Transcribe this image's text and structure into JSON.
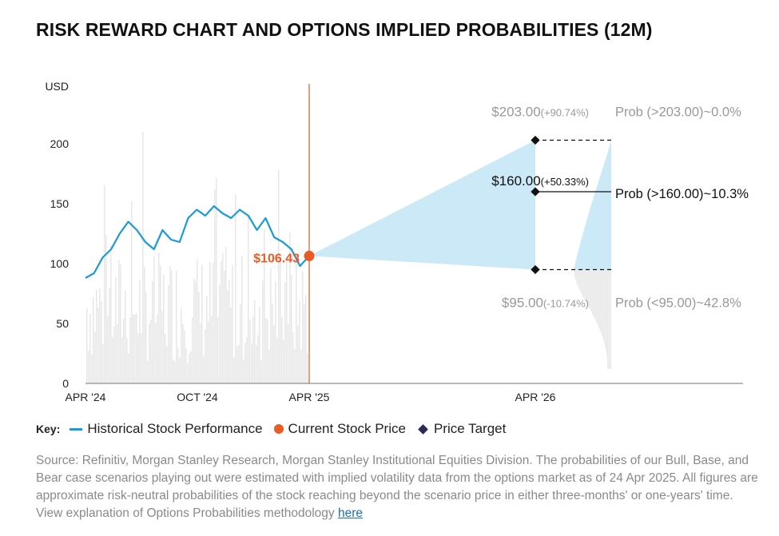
{
  "title": "RISK REWARD CHART AND OPTIONS IMPLIED PROBABILITIES (12M)",
  "chart_data": {
    "type": "line",
    "ylabel": "USD",
    "ylim": [
      0,
      250
    ],
    "yticks": [
      0,
      50,
      100,
      150,
      200
    ],
    "xticks": [
      "APR '24",
      "OCT '24",
      "APR '25",
      "APR '26"
    ],
    "series": [
      {
        "name": "Historical Stock Performance",
        "x": [
          "2024-04-24",
          "2024-05-08",
          "2024-05-22",
          "2024-06-05",
          "2024-06-19",
          "2024-07-03",
          "2024-07-17",
          "2024-07-31",
          "2024-08-14",
          "2024-08-28",
          "2024-09-11",
          "2024-09-25",
          "2024-10-09",
          "2024-10-23",
          "2024-11-06",
          "2024-11-20",
          "2024-12-04",
          "2024-12-18",
          "2025-01-01",
          "2025-01-15",
          "2025-01-29",
          "2025-02-12",
          "2025-02-26",
          "2025-03-12",
          "2025-03-26",
          "2025-04-09",
          "2025-04-24"
        ],
        "values": [
          88,
          92,
          105,
          112,
          125,
          135,
          128,
          118,
          112,
          128,
          120,
          118,
          138,
          145,
          140,
          148,
          142,
          138,
          145,
          140,
          128,
          138,
          122,
          118,
          112,
          98,
          106.43
        ]
      }
    ],
    "volume_bars": "shown",
    "current_price": {
      "label": "$106.43",
      "value": 106.43,
      "date": "APR '25"
    },
    "price_targets": [
      {
        "value": 203,
        "label": "$203.00",
        "change": "(+90.74%)",
        "prob": "Prob (>203.00)~0.0%"
      },
      {
        "value": 160,
        "label": "$160.00",
        "change": "(+50.33%)",
        "prob": "Prob (>160.00)~10.3%"
      },
      {
        "value": 95,
        "label": "$95.00",
        "change": "(-10.74%)",
        "prob": "Prob (<95.00)~42.8%"
      }
    ],
    "target_date": "APR '26",
    "colors": {
      "price_line": "#1a9bd7",
      "current": "#ec5a24",
      "cone": "#cbe9f6",
      "volume": "#e8e8e8",
      "divider": "#e07b4f"
    }
  },
  "key": {
    "label": "Key:",
    "historical": "Historical Stock Performance",
    "current": "Current Stock Price",
    "target": "Price Target"
  },
  "source": {
    "text": "Source: Refinitiv, Morgan Stanley Research, Morgan Stanley Institutional Equities Division. The probabilities of our Bull, Base, and Bear case scenarios playing out were estimated with implied volatility data from the options market as of 24 Apr 2025. All figures are approximate risk-neutral probabilities of the stock reaching beyond the scenario price in either three-months' or one-years' time. View explanation of Options Probabilities methodology ",
    "link": "here"
  }
}
